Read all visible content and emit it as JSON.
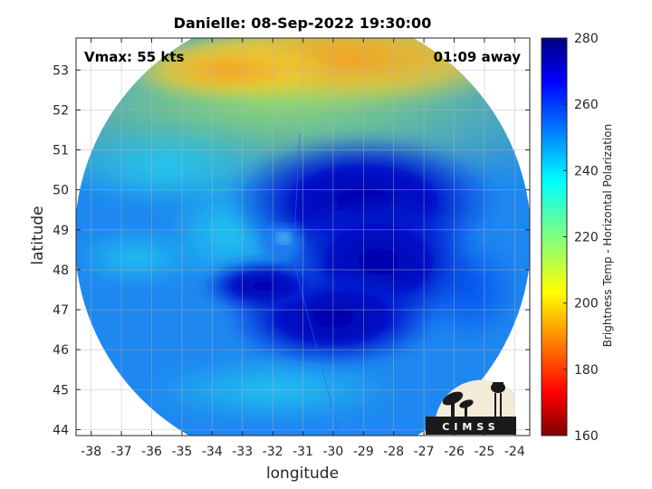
{
  "chart_data": {
    "type": "heatmap",
    "title": "Danielle: 08-Sep-2022 19:30:00",
    "xlabel": "longitude",
    "ylabel": "latitude",
    "xlim": [
      -38.5,
      -23.5
    ],
    "ylim": [
      43.85,
      53.8
    ],
    "xticks": [
      -38,
      -37,
      -36,
      -35,
      -34,
      -33,
      -32,
      -31,
      -30,
      -29,
      -28,
      -27,
      -26,
      -25,
      -24
    ],
    "yticks": [
      44,
      45,
      46,
      47,
      48,
      49,
      50,
      51,
      52,
      53
    ],
    "grid": true,
    "annotations": {
      "vmax": "Vmax: 55 kts",
      "time_away": "01:09 away"
    },
    "colorbar": {
      "label": "Brightness Temp - Horizontal Polarization",
      "range": [
        160,
        280
      ],
      "ticks": [
        160,
        180,
        200,
        220,
        240,
        260,
        280
      ],
      "colormap": "jet"
    },
    "storm_center": {
      "lon": -31.7,
      "lat": 48.7
    },
    "swath_center": {
      "lon": -31.0,
      "lat": 48.8
    }
  },
  "logo": {
    "text": "CIMSS"
  }
}
